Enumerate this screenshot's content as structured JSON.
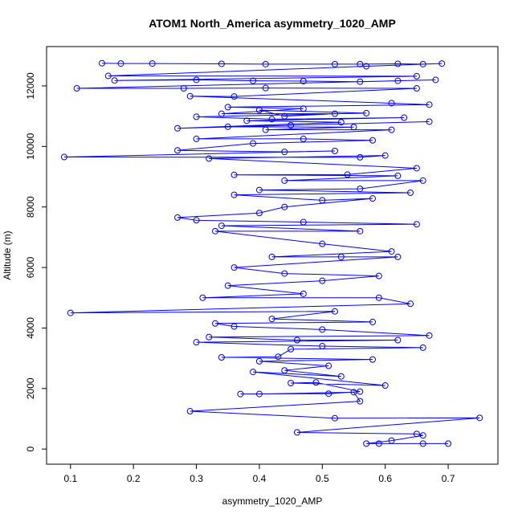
{
  "chart_data": {
    "type": "line",
    "title": "ATOM1 North_America asymmetry_1020_AMP",
    "x_label": "asymmetry_1020_AMP",
    "y_label": "Altitude (m)",
    "color": "#0000ff",
    "markers": true,
    "xlim": [
      0.062,
      0.779
    ],
    "ylim": [
      -500,
      13300
    ],
    "xticks": [
      0.1,
      0.2,
      0.3,
      0.4,
      0.5,
      0.6,
      0.7
    ],
    "yticks": [
      0,
      2000,
      4000,
      6000,
      8000,
      10000,
      12000
    ],
    "x": [
      0.15,
      0.18,
      0.23,
      0.34,
      0.41,
      0.52,
      0.56,
      0.62,
      0.66,
      0.69,
      0.57,
      0.16,
      0.65,
      0.17,
      0.3,
      0.39,
      0.47,
      0.56,
      0.62,
      0.68,
      0.11,
      0.28,
      0.41,
      0.65,
      0.36,
      0.29,
      0.61,
      0.67,
      0.35,
      0.47,
      0.34,
      0.52,
      0.44,
      0.4,
      0.57,
      0.3,
      0.42,
      0.63,
      0.38,
      0.53,
      0.27,
      0.67,
      0.45,
      0.35,
      0.55,
      0.41,
      0.61,
      0.3,
      0.47,
      0.58,
      0.39,
      0.27,
      0.44,
      0.52,
      0.09,
      0.56,
      0.6,
      0.32,
      0.65,
      0.54,
      0.36,
      0.62,
      0.44,
      0.66,
      0.56,
      0.4,
      0.64,
      0.36,
      0.5,
      0.58,
      0.44,
      0.4,
      0.27,
      0.3,
      0.47,
      0.65,
      0.34,
      0.56,
      0.33,
      0.5,
      0.61,
      0.42,
      0.53,
      0.62,
      0.36,
      0.44,
      0.59,
      0.5,
      0.35,
      0.47,
      0.31,
      0.59,
      0.64,
      0.1,
      0.52,
      0.42,
      0.58,
      0.33,
      0.36,
      0.5,
      0.67,
      0.32,
      0.46,
      0.62,
      0.3,
      0.5,
      0.66,
      0.45,
      0.43,
      0.34,
      0.58,
      0.4,
      0.51,
      0.44,
      0.53,
      0.39,
      0.6,
      0.45,
      0.49,
      0.56,
      0.51,
      0.37,
      0.4,
      0.55,
      0.56,
      0.29,
      0.52,
      0.75,
      0.46,
      0.65,
      0.66,
      0.61,
      0.57,
      0.7,
      0.66,
      0.59
    ],
    "values": [
      12750,
      12740,
      12740,
      12730,
      12720,
      12720,
      12720,
      12730,
      12720,
      12740,
      12650,
      12330,
      12320,
      12180,
      12200,
      12170,
      12160,
      12140,
      12170,
      12200,
      11920,
      11920,
      11930,
      11920,
      11650,
      11660,
      11430,
      11380,
      11300,
      11250,
      11080,
      11080,
      11000,
      11200,
      11100,
      10980,
      10900,
      10950,
      10850,
      10800,
      10600,
      10820,
      10700,
      10650,
      10640,
      10550,
      10550,
      10250,
      10250,
      10200,
      10100,
      9870,
      9820,
      9850,
      9650,
      9640,
      9700,
      9600,
      9280,
      9070,
      9060,
      9030,
      8870,
      8870,
      8600,
      8560,
      8470,
      8400,
      8220,
      8280,
      8000,
      7800,
      7650,
      7560,
      7500,
      7430,
      7380,
      7200,
      7200,
      6780,
      6530,
      6350,
      6350,
      6350,
      6000,
      5800,
      5720,
      5560,
      5400,
      5130,
      5000,
      5000,
      4800,
      4500,
      4550,
      4300,
      4200,
      4150,
      4050,
      3950,
      3750,
      3700,
      3600,
      3600,
      3530,
      3400,
      3350,
      3300,
      3050,
      3030,
      2960,
      2900,
      2750,
      2600,
      2400,
      2550,
      2100,
      2180,
      2200,
      1900,
      1830,
      1820,
      1820,
      1880,
      1580,
      1250,
      1020,
      1030,
      550,
      500,
      450,
      280,
      180,
      180,
      180,
      180
    ]
  }
}
